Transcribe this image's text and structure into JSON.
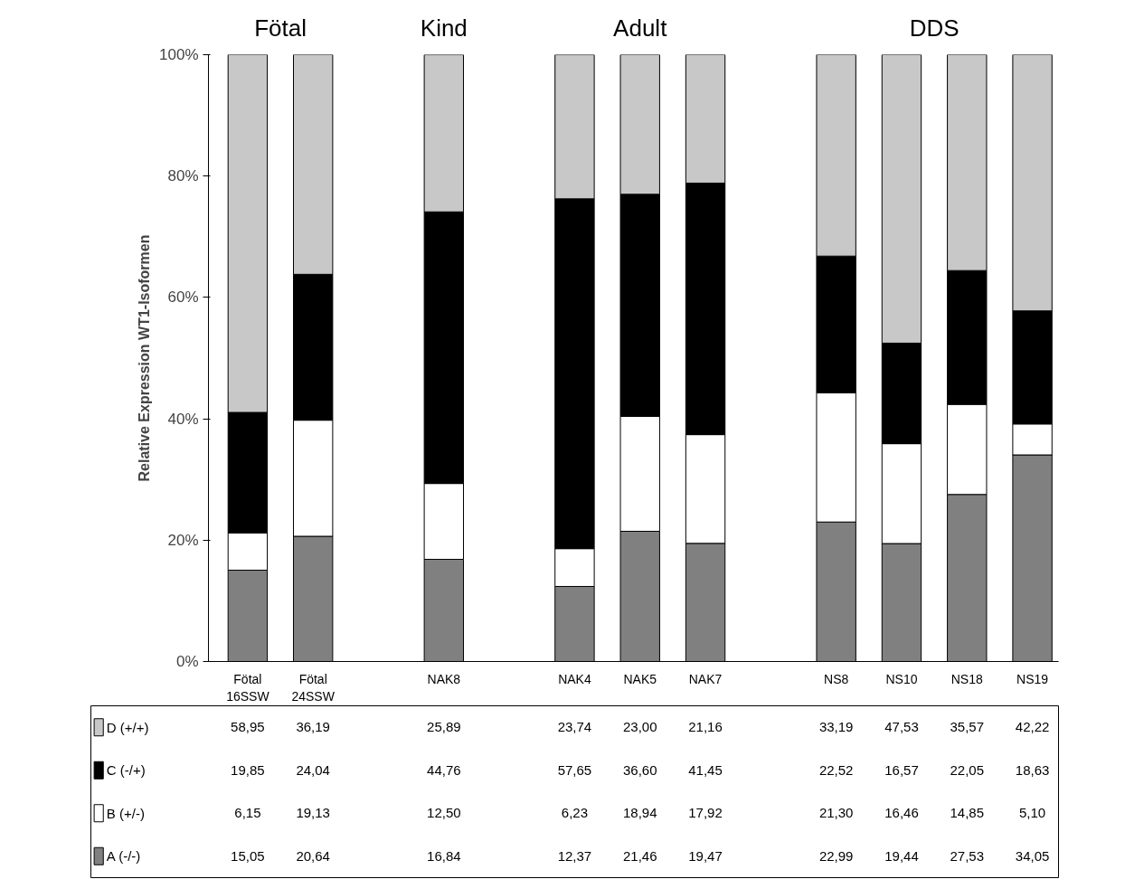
{
  "chart_data": {
    "type": "bar",
    "stacked": true,
    "ylabel": "Relative Expression WT1-Isoformen",
    "categories": [
      "Fötal\n16SSW",
      "Fötal\n24SSW",
      null,
      "NAK8",
      null,
      "NAK4",
      "NAK5",
      "NAK7",
      null,
      "NS8",
      "NS10",
      "NS18",
      "NS19"
    ],
    "ylim": [
      0,
      100
    ],
    "yticks": [
      {
        "value": 0,
        "label": "0%"
      },
      {
        "value": 20,
        "label": "20%"
      },
      {
        "value": 40,
        "label": "40%"
      },
      {
        "value": 60,
        "label": "60%"
      },
      {
        "value": 80,
        "label": "80%"
      },
      {
        "value": 100,
        "label": "100%"
      }
    ],
    "annotations": [
      "Fötal",
      "Kind",
      "Adult",
      "DDS"
    ],
    "legend": "bottom left",
    "series": [
      {
        "name": "A (-/-)",
        "color": "#808080",
        "values": [
          15.05,
          20.64,
          null,
          16.84,
          null,
          12.37,
          21.46,
          19.47,
          null,
          22.99,
          19.44,
          27.53,
          34.05
        ],
        "value_labels": [
          "15,05",
          "20,64",
          null,
          "16,84",
          null,
          "12,37",
          "21,46",
          "19,47",
          null,
          "22,99",
          "19,44",
          "27,53",
          "34,05"
        ]
      },
      {
        "name": "B (+/-)",
        "color": "#ffffff",
        "values": [
          6.15,
          19.13,
          null,
          12.5,
          null,
          6.23,
          18.94,
          17.92,
          null,
          21.3,
          16.46,
          14.85,
          5.1
        ],
        "value_labels": [
          "6,15",
          "19,13",
          null,
          "12,50",
          null,
          "6,23",
          "18,94",
          "17,92",
          null,
          "21,30",
          "16,46",
          "14,85",
          "5,10"
        ]
      },
      {
        "name": "C (-/+)",
        "color": "#000000",
        "values": [
          19.85,
          24.04,
          null,
          44.76,
          null,
          57.65,
          36.6,
          41.45,
          null,
          22.52,
          16.57,
          22.05,
          18.63
        ],
        "value_labels": [
          "19,85",
          "24,04",
          null,
          "44,76",
          null,
          "57,65",
          "36,60",
          "41,45",
          null,
          "22,52",
          "16,57",
          "22,05",
          "18,63"
        ]
      },
      {
        "name": "D (+/+)",
        "color": "#c8c8c8",
        "values": [
          58.95,
          36.19,
          null,
          25.89,
          null,
          23.74,
          23.0,
          21.16,
          null,
          33.19,
          47.53,
          35.57,
          42.22
        ],
        "value_labels": [
          "58,95",
          "36,19",
          null,
          "25,89",
          null,
          "23,74",
          "23,00",
          "21,16",
          null,
          "33,19",
          "47,53",
          "35,57",
          "42,22"
        ]
      }
    ]
  }
}
